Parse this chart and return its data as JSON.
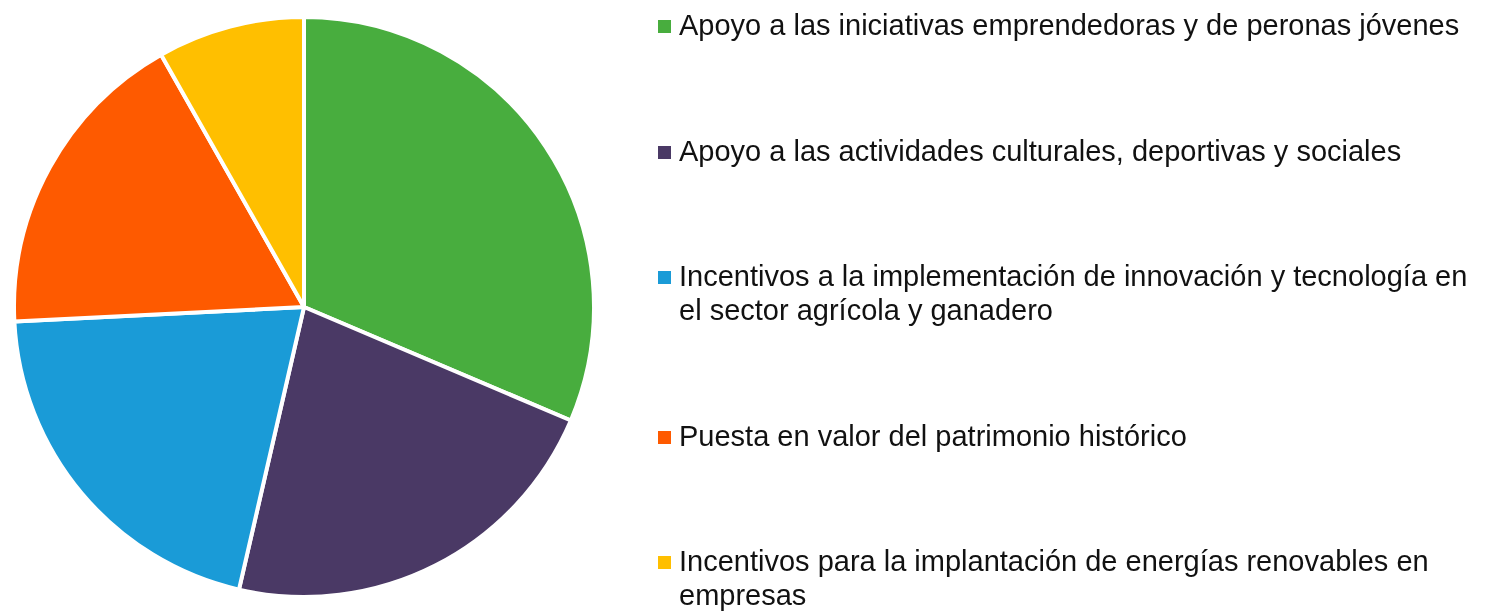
{
  "chart_data": {
    "type": "pie",
    "categories": [
      "Apoyo a las iniciativas emprendedoras y de peronas jóvenes",
      "Apoyo a las actividades culturales, deportivas y sociales",
      "Incentivos a la implementación de innovación y tecnología en el sector agrícola y ganadero",
      "Puesta en valor del patrimonio histórico",
      "Incentivos para la implantación de energías renovables en empresas"
    ],
    "values": [
      31.4,
      22.2,
      20.6,
      17.6,
      8.2
    ],
    "colors": [
      "#48ad3e",
      "#4a3965",
      "#1a9bd7",
      "#fe5a00",
      "#ffbf00"
    ],
    "legend": "right"
  }
}
